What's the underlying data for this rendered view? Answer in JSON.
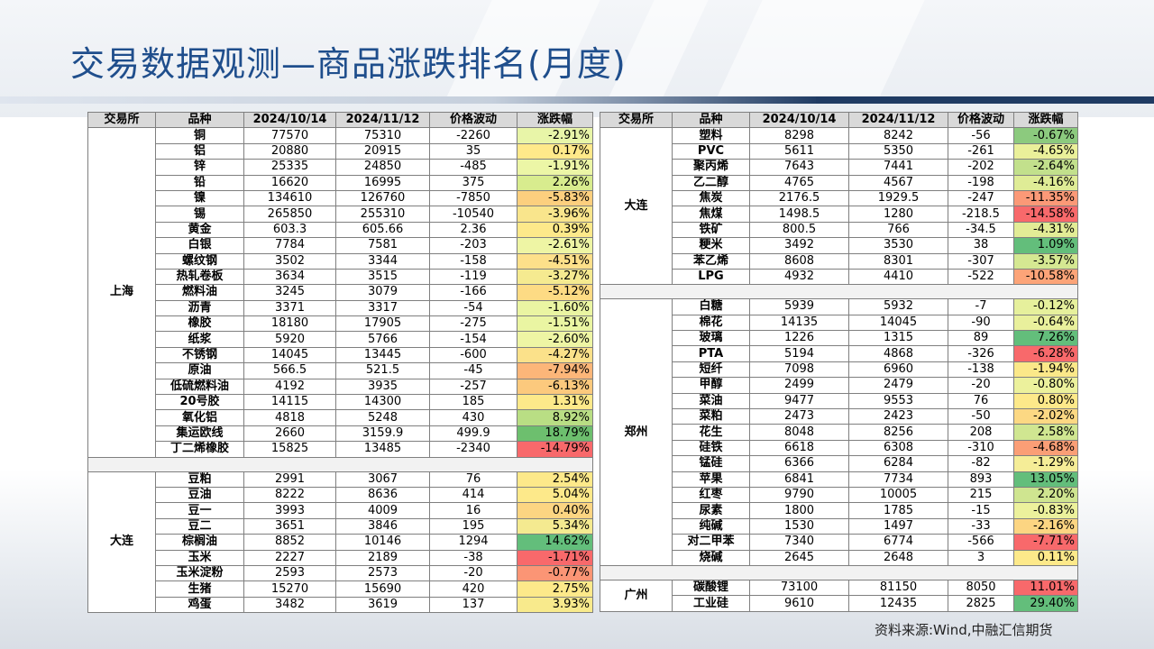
{
  "title": "交易数据观测—商品涨跌排名(月度)",
  "source": "资料来源:Wind,中融汇信期货",
  "headers": [
    "交易所",
    "品种",
    "2024/10/14",
    "2024/11/12",
    "价格波动",
    "涨跌幅"
  ],
  "left": [
    {
      "exchange": "上海",
      "rows": [
        {
          "name": "铜",
          "d1": "77570",
          "d2": "75310",
          "chg": "-2260",
          "pct": "-2.91%",
          "color": "#e8f5a8"
        },
        {
          "name": "铝",
          "d1": "20880",
          "d2": "20915",
          "chg": "35",
          "pct": "0.17%",
          "color": "#ffe98a"
        },
        {
          "name": "锌",
          "d1": "25335",
          "d2": "24850",
          "chg": "-485",
          "pct": "-1.91%",
          "color": "#ecf6a6"
        },
        {
          "name": "铅",
          "d1": "16620",
          "d2": "16995",
          "chg": "375",
          "pct": "2.26%",
          "color": "#d8ec8e"
        },
        {
          "name": "镍",
          "d1": "134610",
          "d2": "126760",
          "chg": "-7850",
          "pct": "-5.83%",
          "color": "#fccf7e"
        },
        {
          "name": "锡",
          "d1": "265850",
          "d2": "255310",
          "chg": "-10540",
          "pct": "-3.96%",
          "color": "#f9e58c"
        },
        {
          "name": "黄金",
          "d1": "603.3",
          "d2": "605.66",
          "chg": "2.36",
          "pct": "0.39%",
          "color": "#fde98a"
        },
        {
          "name": "白银",
          "d1": "7784",
          "d2": "7581",
          "chg": "-203",
          "pct": "-2.61%",
          "color": "#eef5a4"
        },
        {
          "name": "螺纹钢",
          "d1": "3502",
          "d2": "3344",
          "chg": "-158",
          "pct": "-4.51%",
          "color": "#fde08a"
        },
        {
          "name": "热轧卷板",
          "d1": "3634",
          "d2": "3515",
          "chg": "-119",
          "pct": "-3.27%",
          "color": "#f5ea90"
        },
        {
          "name": "燃料油",
          "d1": "3245",
          "d2": "3079",
          "chg": "-166",
          "pct": "-5.12%",
          "color": "#fddb84"
        },
        {
          "name": "沥青",
          "d1": "3371",
          "d2": "3317",
          "chg": "-54",
          "pct": "-1.60%",
          "color": "#eaf5a2"
        },
        {
          "name": "橡胶",
          "d1": "18180",
          "d2": "17905",
          "chg": "-275",
          "pct": "-1.51%",
          "color": "#eaf5a2"
        },
        {
          "name": "纸浆",
          "d1": "5920",
          "d2": "5766",
          "chg": "-154",
          "pct": "-2.60%",
          "color": "#eef5a4"
        },
        {
          "name": "不锈钢",
          "d1": "14045",
          "d2": "13445",
          "chg": "-600",
          "pct": "-4.27%",
          "color": "#fbe18a"
        },
        {
          "name": "原油",
          "d1": "566.5",
          "d2": "521.5",
          "chg": "-45",
          "pct": "-7.94%",
          "color": "#fcb679"
        },
        {
          "name": "低硫燃料油",
          "d1": "4192",
          "d2": "3935",
          "chg": "-257",
          "pct": "-6.13%",
          "color": "#fcc97d"
        },
        {
          "name": "20号胶",
          "d1": "14115",
          "d2": "14300",
          "chg": "185",
          "pct": "1.31%",
          "color": "#fde98a"
        },
        {
          "name": "氧化铝",
          "d1": "4818",
          "d2": "5248",
          "chg": "430",
          "pct": "8.92%",
          "color": "#b9de84"
        },
        {
          "name": "集运欧线",
          "d1": "2660",
          "d2": "3159.9",
          "chg": "499.9",
          "pct": "18.79%",
          "color": "#6dbf6e"
        },
        {
          "name": "丁二烯橡胶",
          "d1": "15825",
          "d2": "13485",
          "chg": "-2340",
          "pct": "-14.79%",
          "color": "#f8696b"
        }
      ]
    },
    {
      "exchange": "大连",
      "rows": [
        {
          "name": "豆粕",
          "d1": "2991",
          "d2": "3067",
          "chg": "76",
          "pct": "2.54%",
          "color": "#fde98a"
        },
        {
          "name": "豆油",
          "d1": "8222",
          "d2": "8636",
          "chg": "414",
          "pct": "5.04%",
          "color": "#fde98a"
        },
        {
          "name": "豆一",
          "d1": "3993",
          "d2": "4009",
          "chg": "16",
          "pct": "0.40%",
          "color": "#fcd582"
        },
        {
          "name": "豆二",
          "d1": "3651",
          "d2": "3846",
          "chg": "195",
          "pct": "5.34%",
          "color": "#f4ea90"
        },
        {
          "name": "棕榈油",
          "d1": "8852",
          "d2": "10146",
          "chg": "1294",
          "pct": "14.62%",
          "color": "#63be7b"
        },
        {
          "name": "玉米",
          "d1": "2227",
          "d2": "2189",
          "chg": "-38",
          "pct": "-1.71%",
          "color": "#f8696b"
        },
        {
          "name": "玉米淀粉",
          "d1": "2593",
          "d2": "2573",
          "chg": "-20",
          "pct": "-0.77%",
          "color": "#fb9575"
        },
        {
          "name": "生猪",
          "d1": "15270",
          "d2": "15690",
          "chg": "420",
          "pct": "2.75%",
          "color": "#fde98a"
        },
        {
          "name": "鸡蛋",
          "d1": "3482",
          "d2": "3619",
          "chg": "137",
          "pct": "3.93%",
          "color": "#f8ea8c"
        }
      ]
    }
  ],
  "right": [
    {
      "exchange": "大连",
      "rows": [
        {
          "name": "塑料",
          "d1": "8298",
          "d2": "8242",
          "chg": "-56",
          "pct": "-0.67%",
          "color": "#8cca7e"
        },
        {
          "name": "PVC",
          "d1": "5611",
          "d2": "5350",
          "chg": "-261",
          "pct": "-4.65%",
          "color": "#eaf09a"
        },
        {
          "name": "聚丙烯",
          "d1": "7643",
          "d2": "7441",
          "chg": "-202",
          "pct": "-2.64%",
          "color": "#c2e08c"
        },
        {
          "name": "乙二醇",
          "d1": "4765",
          "d2": "4567",
          "chg": "-198",
          "pct": "-4.16%",
          "color": "#dfec96"
        },
        {
          "name": "焦炭",
          "d1": "2176.5",
          "d2": "1929.5",
          "chg": "-247",
          "pct": "-11.35%",
          "color": "#fb9977"
        },
        {
          "name": "焦煤",
          "d1": "1498.5",
          "d2": "1280",
          "chg": "-218.5",
          "pct": "-14.58%",
          "color": "#f8696b"
        },
        {
          "name": "铁矿",
          "d1": "800.5",
          "d2": "766",
          "chg": "-34.5",
          "pct": "-4.31%",
          "color": "#e2ec96"
        },
        {
          "name": "粳米",
          "d1": "3492",
          "d2": "3530",
          "chg": "38",
          "pct": "1.09%",
          "color": "#63be7b"
        },
        {
          "name": "苯乙烯",
          "d1": "8608",
          "d2": "8301",
          "chg": "-307",
          "pct": "-3.57%",
          "color": "#d5e892"
        },
        {
          "name": "LPG",
          "d1": "4932",
          "d2": "4410",
          "chg": "-522",
          "pct": "-10.58%",
          "color": "#fca478"
        }
      ]
    },
    {
      "exchange": "郑州",
      "rows": [
        {
          "name": "白糖",
          "d1": "5939",
          "d2": "5932",
          "chg": "-7",
          "pct": "-0.12%",
          "color": "#e6f09c"
        },
        {
          "name": "棉花",
          "d1": "14135",
          "d2": "14045",
          "chg": "-90",
          "pct": "-0.64%",
          "color": "#e9f09c"
        },
        {
          "name": "玻璃",
          "d1": "1226",
          "d2": "1315",
          "chg": "89",
          "pct": "7.26%",
          "color": "#63be7b"
        },
        {
          "name": "PTA",
          "d1": "5194",
          "d2": "4868",
          "chg": "-326",
          "pct": "-6.28%",
          "color": "#f8696b"
        },
        {
          "name": "短纤",
          "d1": "7098",
          "d2": "6960",
          "chg": "-138",
          "pct": "-1.94%",
          "color": "#fbe889"
        },
        {
          "name": "甲醇",
          "d1": "2499",
          "d2": "2479",
          "chg": "-20",
          "pct": "-0.80%",
          "color": "#ecf19c"
        },
        {
          "name": "菜油",
          "d1": "9477",
          "d2": "9553",
          "chg": "76",
          "pct": "0.80%",
          "color": "#fde98a"
        },
        {
          "name": "菜粕",
          "d1": "2473",
          "d2": "2423",
          "chg": "-50",
          "pct": "-2.02%",
          "color": "#fcd883"
        },
        {
          "name": "花生",
          "d1": "8048",
          "d2": "8256",
          "chg": "208",
          "pct": "2.58%",
          "color": "#d0e691"
        },
        {
          "name": "硅铁",
          "d1": "6618",
          "d2": "6308",
          "chg": "-310",
          "pct": "-4.68%",
          "color": "#fa9e76"
        },
        {
          "name": "锰硅",
          "d1": "6366",
          "d2": "6284",
          "chg": "-82",
          "pct": "-1.29%",
          "color": "#f5ed97"
        },
        {
          "name": "苹果",
          "d1": "6841",
          "d2": "7734",
          "chg": "893",
          "pct": "13.05%",
          "color": "#63be7b"
        },
        {
          "name": "红枣",
          "d1": "9790",
          "d2": "10005",
          "chg": "215",
          "pct": "2.20%",
          "color": "#cfe590"
        },
        {
          "name": "尿素",
          "d1": "1800",
          "d2": "1785",
          "chg": "-15",
          "pct": "-0.83%",
          "color": "#ecf19c"
        },
        {
          "name": "纯碱",
          "d1": "1530",
          "d2": "1497",
          "chg": "-33",
          "pct": "-2.16%",
          "color": "#fcd582"
        },
        {
          "name": "对二甲苯",
          "d1": "7340",
          "d2": "6774",
          "chg": "-566",
          "pct": "-7.71%",
          "color": "#f8696b"
        },
        {
          "name": "烧碱",
          "d1": "2645",
          "d2": "2648",
          "chg": "3",
          "pct": "0.11%",
          "color": "#fde98a"
        }
      ]
    },
    {
      "exchange": "广州",
      "rows": [
        {
          "name": "碳酸锂",
          "d1": "73100",
          "d2": "81150",
          "chg": "8050",
          "pct": "11.01%",
          "color": "#f8696b"
        },
        {
          "name": "工业硅",
          "d1": "9610",
          "d2": "12435",
          "chg": "2825",
          "pct": "29.40%",
          "color": "#63be7b"
        }
      ]
    }
  ]
}
